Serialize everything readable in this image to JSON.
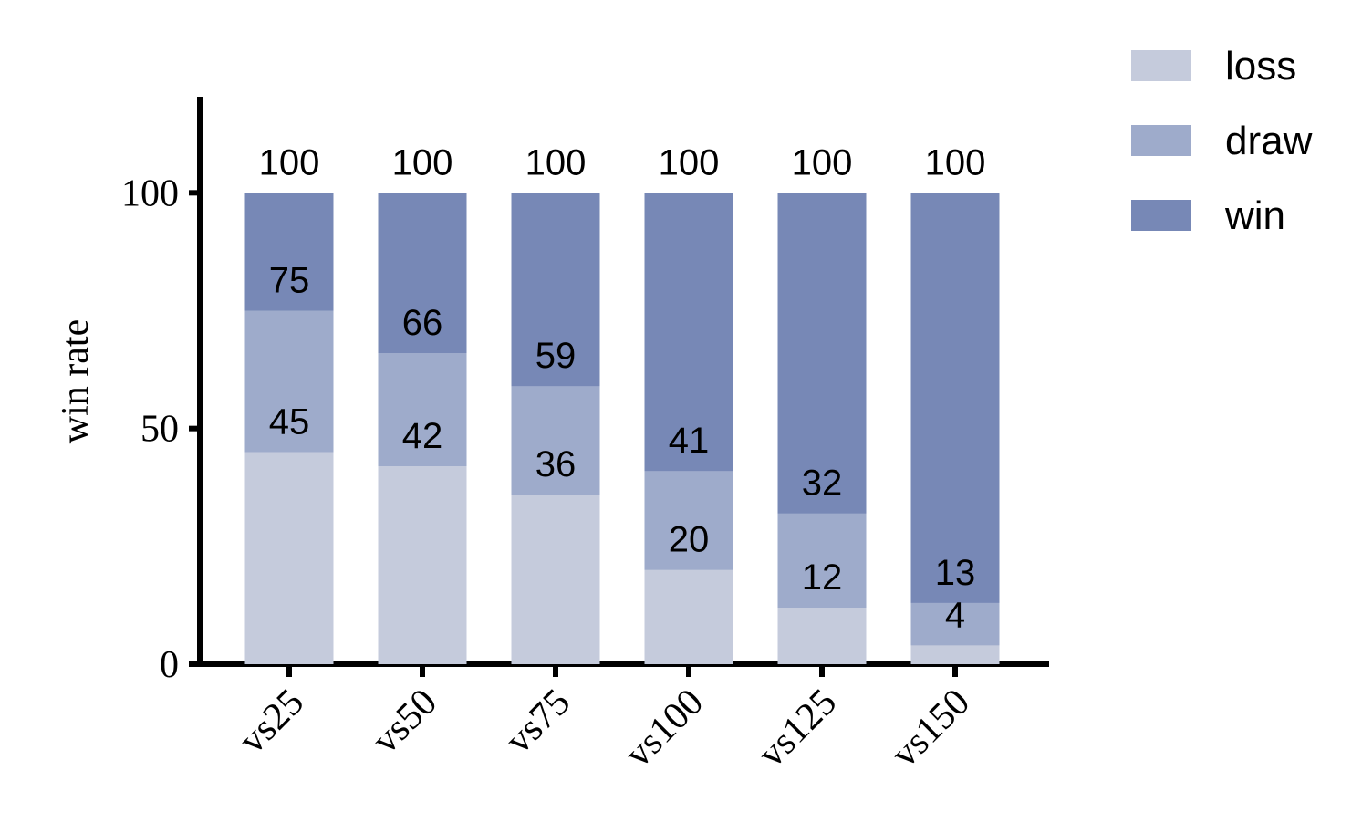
{
  "chart_data": {
    "type": "bar",
    "layout": "overlap",
    "y_label": "win rate",
    "categories": [
      "vs25",
      "vs50",
      "vs75",
      "vs100",
      "vs125",
      "vs150"
    ],
    "series": [
      {
        "name": "loss",
        "color": "#c5cbdc",
        "values": [
          45,
          42,
          36,
          20,
          12,
          4
        ]
      },
      {
        "name": "draw",
        "color": "#9eabcb",
        "values": [
          75,
          66,
          59,
          41,
          32,
          13
        ]
      },
      {
        "name": "win",
        "color": "#7788b6",
        "values": [
          100,
          100,
          100,
          100,
          100,
          100
        ]
      }
    ],
    "ylim": [
      0,
      120
    ],
    "yticks": [
      0,
      50,
      100
    ],
    "grid": false,
    "legend": "right"
  }
}
